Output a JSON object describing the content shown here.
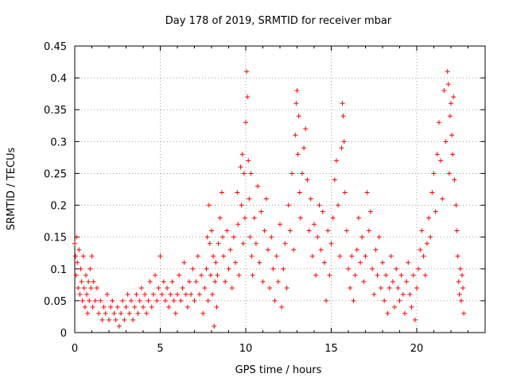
{
  "chart_data": {
    "type": "scatter",
    "title": "Day 178 of 2019, SRMTID for receiver mbar",
    "xlabel": "GPS time / hours",
    "ylabel": "SRMTID / TECUs",
    "xlim": [
      0,
      24
    ],
    "ylim": [
      0,
      0.45
    ],
    "x_ticks": [
      0,
      5,
      10,
      15,
      20
    ],
    "x_tick_labels": [
      "0",
      "5",
      "10",
      "15",
      "20"
    ],
    "y_ticks": [
      0,
      0.05,
      0.1,
      0.15,
      0.2,
      0.25,
      0.3,
      0.35,
      0.4,
      0.45
    ],
    "y_tick_labels": [
      "0",
      "0.05",
      "0.1",
      "0.15",
      "0.2",
      "0.25",
      "0.3",
      "0.35",
      "0.4",
      "0.45"
    ],
    "grid": true,
    "marker": "plus",
    "color": "#ff0000",
    "points": [
      [
        0.0,
        0.14
      ],
      [
        0.05,
        0.12
      ],
      [
        0.08,
        0.09
      ],
      [
        0.1,
        0.15
      ],
      [
        0.15,
        0.11
      ],
      [
        0.2,
        0.07
      ],
      [
        0.25,
        0.13
      ],
      [
        0.3,
        0.06
      ],
      [
        0.35,
        0.1
      ],
      [
        0.4,
        0.08
      ],
      [
        0.45,
        0.05
      ],
      [
        0.5,
        0.12
      ],
      [
        0.55,
        0.07
      ],
      [
        0.6,
        0.04
      ],
      [
        0.65,
        0.09
      ],
      [
        0.7,
        0.06
      ],
      [
        0.75,
        0.03
      ],
      [
        0.8,
        0.08
      ],
      [
        0.85,
        0.05
      ],
      [
        0.9,
        0.1
      ],
      [
        0.95,
        0.07
      ],
      [
        1.0,
        0.12
      ],
      [
        1.05,
        0.04
      ],
      [
        1.1,
        0.08
      ],
      [
        1.2,
        0.05
      ],
      [
        1.3,
        0.07
      ],
      [
        1.4,
        0.03
      ],
      [
        1.5,
        0.05
      ],
      [
        1.6,
        0.02
      ],
      [
        1.7,
        0.04
      ],
      [
        1.8,
        0.03
      ],
      [
        1.9,
        0.06
      ],
      [
        2.0,
        0.02
      ],
      [
        2.1,
        0.04
      ],
      [
        2.2,
        0.05
      ],
      [
        2.3,
        0.03
      ],
      [
        2.4,
        0.02
      ],
      [
        2.5,
        0.04
      ],
      [
        2.6,
        0.01
      ],
      [
        2.7,
        0.03
      ],
      [
        2.8,
        0.05
      ],
      [
        2.9,
        0.02
      ],
      [
        3.0,
        0.04
      ],
      [
        3.1,
        0.06
      ],
      [
        3.2,
        0.03
      ],
      [
        3.3,
        0.05
      ],
      [
        3.4,
        0.02
      ],
      [
        3.5,
        0.04
      ],
      [
        3.6,
        0.06
      ],
      [
        3.7,
        0.03
      ],
      [
        3.8,
        0.05
      ],
      [
        3.9,
        0.07
      ],
      [
        4.0,
        0.04
      ],
      [
        4.1,
        0.06
      ],
      [
        4.2,
        0.03
      ],
      [
        4.3,
        0.05
      ],
      [
        4.4,
        0.08
      ],
      [
        4.5,
        0.04
      ],
      [
        4.6,
        0.06
      ],
      [
        4.7,
        0.09
      ],
      [
        4.8,
        0.05
      ],
      [
        4.9,
        0.07
      ],
      [
        5.0,
        0.12
      ],
      [
        5.1,
        0.06
      ],
      [
        5.2,
        0.08
      ],
      [
        5.3,
        0.05
      ],
      [
        5.4,
        0.07
      ],
      [
        5.5,
        0.04
      ],
      [
        5.6,
        0.06
      ],
      [
        5.7,
        0.08
      ],
      [
        5.8,
        0.05
      ],
      [
        5.9,
        0.03
      ],
      [
        6.0,
        0.06
      ],
      [
        6.1,
        0.09
      ],
      [
        6.2,
        0.05
      ],
      [
        6.3,
        0.07
      ],
      [
        6.4,
        0.11
      ],
      [
        6.5,
        0.06
      ],
      [
        6.6,
        0.04
      ],
      [
        6.7,
        0.08
      ],
      [
        6.8,
        0.06
      ],
      [
        6.9,
        0.1
      ],
      [
        7.0,
        0.05
      ],
      [
        7.1,
        0.08
      ],
      [
        7.2,
        0.12
      ],
      [
        7.3,
        0.06
      ],
      [
        7.4,
        0.09
      ],
      [
        7.5,
        0.03
      ],
      [
        7.6,
        0.07
      ],
      [
        7.7,
        0.1
      ],
      [
        7.75,
        0.15
      ],
      [
        7.8,
        0.05
      ],
      [
        7.85,
        0.2
      ],
      [
        7.9,
        0.14
      ],
      [
        7.95,
        0.09
      ],
      [
        8.0,
        0.16
      ],
      [
        8.05,
        0.06
      ],
      [
        8.1,
        0.12
      ],
      [
        8.15,
        0.01
      ],
      [
        8.2,
        0.08
      ],
      [
        8.25,
        0.11
      ],
      [
        8.3,
        0.04
      ],
      [
        8.35,
        0.09
      ],
      [
        8.4,
        0.14
      ],
      [
        8.5,
        0.18
      ],
      [
        8.6,
        0.22
      ],
      [
        8.65,
        0.15
      ],
      [
        8.7,
        0.12
      ],
      [
        8.8,
        0.08
      ],
      [
        8.9,
        0.16
      ],
      [
        9.0,
        0.1
      ],
      [
        9.1,
        0.13
      ],
      [
        9.2,
        0.07
      ],
      [
        9.3,
        0.15
      ],
      [
        9.4,
        0.11
      ],
      [
        9.5,
        0.22
      ],
      [
        9.55,
        0.17
      ],
      [
        9.6,
        0.09
      ],
      [
        9.7,
        0.26
      ],
      [
        9.75,
        0.2
      ],
      [
        9.8,
        0.28
      ],
      [
        9.85,
        0.14
      ],
      [
        9.9,
        0.25
      ],
      [
        9.95,
        0.18
      ],
      [
        10.0,
        0.33
      ],
      [
        10.05,
        0.41
      ],
      [
        10.1,
        0.37
      ],
      [
        10.15,
        0.27
      ],
      [
        10.2,
        0.21
      ],
      [
        10.25,
        0.15
      ],
      [
        10.3,
        0.25
      ],
      [
        10.35,
        0.12
      ],
      [
        10.4,
        0.09
      ],
      [
        10.5,
        0.18
      ],
      [
        10.6,
        0.14
      ],
      [
        10.7,
        0.23
      ],
      [
        10.8,
        0.11
      ],
      [
        10.9,
        0.19
      ],
      [
        11.0,
        0.08
      ],
      [
        11.1,
        0.16
      ],
      [
        11.2,
        0.21
      ],
      [
        11.3,
        0.13
      ],
      [
        11.4,
        0.07
      ],
      [
        11.5,
        0.15
      ],
      [
        11.6,
        0.1
      ],
      [
        11.7,
        0.05
      ],
      [
        11.8,
        0.12
      ],
      [
        11.9,
        0.08
      ],
      [
        12.0,
        0.17
      ],
      [
        12.1,
        0.04
      ],
      [
        12.2,
        0.1
      ],
      [
        12.3,
        0.14
      ],
      [
        12.4,
        0.07
      ],
      [
        12.5,
        0.2
      ],
      [
        12.6,
        0.16
      ],
      [
        12.7,
        0.25
      ],
      [
        12.8,
        0.13
      ],
      [
        12.9,
        0.31
      ],
      [
        12.95,
        0.36
      ],
      [
        13.0,
        0.38
      ],
      [
        13.05,
        0.28
      ],
      [
        13.1,
        0.34
      ],
      [
        13.15,
        0.22
      ],
      [
        13.2,
        0.18
      ],
      [
        13.3,
        0.25
      ],
      [
        13.4,
        0.29
      ],
      [
        13.5,
        0.32
      ],
      [
        13.6,
        0.24
      ],
      [
        13.7,
        0.16
      ],
      [
        13.8,
        0.21
      ],
      [
        13.9,
        0.12
      ],
      [
        14.0,
        0.17
      ],
      [
        14.1,
        0.09
      ],
      [
        14.2,
        0.15
      ],
      [
        14.3,
        0.2
      ],
      [
        14.4,
        0.13
      ],
      [
        14.5,
        0.19
      ],
      [
        14.6,
        0.11
      ],
      [
        14.7,
        0.05
      ],
      [
        14.8,
        0.16
      ],
      [
        14.9,
        0.09
      ],
      [
        15.0,
        0.14
      ],
      [
        15.1,
        0.18
      ],
      [
        15.2,
        0.24
      ],
      [
        15.3,
        0.27
      ],
      [
        15.4,
        0.2
      ],
      [
        15.5,
        0.12
      ],
      [
        15.6,
        0.29
      ],
      [
        15.65,
        0.36
      ],
      [
        15.7,
        0.34
      ],
      [
        15.75,
        0.3
      ],
      [
        15.8,
        0.22
      ],
      [
        15.9,
        0.16
      ],
      [
        16.0,
        0.1
      ],
      [
        16.1,
        0.07
      ],
      [
        16.2,
        0.12
      ],
      [
        16.3,
        0.05
      ],
      [
        16.4,
        0.09
      ],
      [
        16.5,
        0.13
      ],
      [
        16.6,
        0.18
      ],
      [
        16.7,
        0.11
      ],
      [
        16.8,
        0.15
      ],
      [
        16.9,
        0.08
      ],
      [
        17.0,
        0.12
      ],
      [
        17.1,
        0.22
      ],
      [
        17.2,
        0.16
      ],
      [
        17.3,
        0.19
      ],
      [
        17.4,
        0.1
      ],
      [
        17.5,
        0.06
      ],
      [
        17.6,
        0.13
      ],
      [
        17.7,
        0.09
      ],
      [
        17.8,
        0.15
      ],
      [
        17.9,
        0.07
      ],
      [
        18.0,
        0.11
      ],
      [
        18.1,
        0.05
      ],
      [
        18.2,
        0.09
      ],
      [
        18.3,
        0.03
      ],
      [
        18.4,
        0.07
      ],
      [
        18.5,
        0.12
      ],
      [
        18.6,
        0.08
      ],
      [
        18.7,
        0.04
      ],
      [
        18.8,
        0.1
      ],
      [
        18.9,
        0.07
      ],
      [
        19.0,
        0.05
      ],
      [
        19.1,
        0.09
      ],
      [
        19.2,
        0.06
      ],
      [
        19.3,
        0.03
      ],
      [
        19.4,
        0.08
      ],
      [
        19.5,
        0.11
      ],
      [
        19.6,
        0.06
      ],
      [
        19.7,
        0.04
      ],
      [
        19.8,
        0.09
      ],
      [
        19.9,
        0.02
      ],
      [
        20.0,
        0.07
      ],
      [
        20.1,
        0.1
      ],
      [
        20.2,
        0.13
      ],
      [
        20.3,
        0.16
      ],
      [
        20.4,
        0.12
      ],
      [
        20.5,
        0.09
      ],
      [
        20.6,
        0.14
      ],
      [
        20.7,
        0.18
      ],
      [
        20.8,
        0.15
      ],
      [
        20.9,
        0.22
      ],
      [
        21.0,
        0.25
      ],
      [
        21.1,
        0.19
      ],
      [
        21.2,
        0.28
      ],
      [
        21.3,
        0.33
      ],
      [
        21.4,
        0.27
      ],
      [
        21.5,
        0.21
      ],
      [
        21.6,
        0.38
      ],
      [
        21.7,
        0.3
      ],
      [
        21.8,
        0.41
      ],
      [
        21.85,
        0.39
      ],
      [
        21.9,
        0.25
      ],
      [
        21.95,
        0.34
      ],
      [
        22.0,
        0.36
      ],
      [
        22.05,
        0.31
      ],
      [
        22.1,
        0.28
      ],
      [
        22.15,
        0.37
      ],
      [
        22.2,
        0.24
      ],
      [
        22.3,
        0.2
      ],
      [
        22.35,
        0.16
      ],
      [
        22.4,
        0.12
      ],
      [
        22.45,
        0.08
      ],
      [
        22.5,
        0.06
      ],
      [
        22.55,
        0.1
      ],
      [
        22.6,
        0.05
      ],
      [
        22.65,
        0.09
      ],
      [
        22.7,
        0.07
      ],
      [
        22.75,
        0.03
      ]
    ]
  }
}
